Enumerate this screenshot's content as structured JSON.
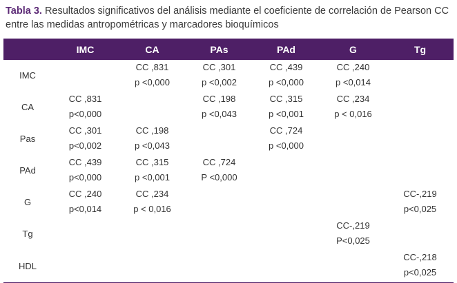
{
  "caption": {
    "label": "Tabla 3.",
    "text": " Resultados significativos del análisis mediante el coeficiente de correlación de Pearson CC entre las medidas antropométricas y marcadores bioquímicos"
  },
  "table": {
    "columns": [
      "",
      "IMC",
      "CA",
      "PAs",
      "PAd",
      "G",
      "Tg"
    ],
    "rows": [
      {
        "label": "IMC",
        "cells": [
          [
            "",
            ""
          ],
          [
            "CC ,831",
            "p <0,000"
          ],
          [
            "CC ,301",
            "p <0,002"
          ],
          [
            "CC ,439",
            "p <0,000"
          ],
          [
            "CC ,240",
            "p <0,014"
          ],
          [
            "",
            ""
          ]
        ]
      },
      {
        "label": "CA",
        "cells": [
          [
            "CC ,831",
            "p<0,000"
          ],
          [
            "",
            ""
          ],
          [
            "CC ,198",
            "p <0,043"
          ],
          [
            "CC ,315",
            "p <0,001"
          ],
          [
            "CC ,234",
            "p < 0,016"
          ],
          [
            "",
            ""
          ]
        ]
      },
      {
        "label": "Pas",
        "cells": [
          [
            "CC ,301",
            "p<0,002"
          ],
          [
            "CC ,198",
            "p <0,043"
          ],
          [
            "",
            ""
          ],
          [
            "CC ,724",
            "p <0,000"
          ],
          [
            "",
            ""
          ],
          [
            "",
            ""
          ]
        ]
      },
      {
        "label": "PAd",
        "cells": [
          [
            "CC ,439",
            "p<0,000"
          ],
          [
            "CC ,315",
            "p <0,001"
          ],
          [
            "CC ,724",
            "P <0,000"
          ],
          [
            "",
            ""
          ],
          [
            "",
            ""
          ],
          [
            "",
            ""
          ]
        ]
      },
      {
        "label": "G",
        "cells": [
          [
            "CC ,240",
            "p<0,014"
          ],
          [
            "CC ,234",
            "p < 0,016"
          ],
          [
            "",
            ""
          ],
          [
            "",
            ""
          ],
          [
            "",
            ""
          ],
          [
            "CC-,219",
            "p<0,025"
          ]
        ]
      },
      {
        "label": "Tg",
        "cells": [
          [
            "",
            ""
          ],
          [
            "",
            ""
          ],
          [
            "",
            ""
          ],
          [
            "",
            ""
          ],
          [
            "CC-,219",
            "P<0,025"
          ],
          [
            "",
            ""
          ]
        ]
      },
      {
        "label": "HDL",
        "cells": [
          [
            "",
            ""
          ],
          [
            "",
            ""
          ],
          [
            "",
            ""
          ],
          [
            "",
            ""
          ],
          [
            "",
            ""
          ],
          [
            "CC-,218",
            "p<0,025"
          ]
        ]
      }
    ]
  }
}
